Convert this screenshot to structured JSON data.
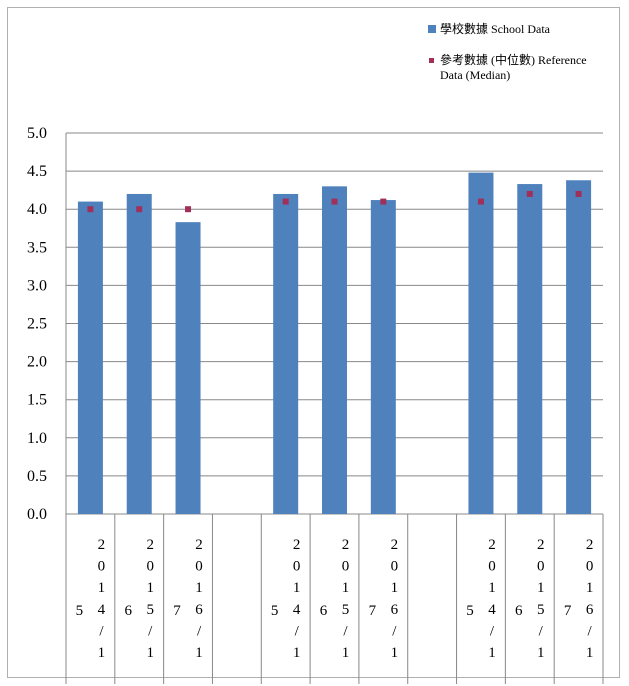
{
  "legend": {
    "school_label": "學校數據 School Data",
    "reference_label": "參考數據 (中位數) Reference Data (Median)"
  },
  "colors": {
    "bar": "#4f81bd",
    "point": "#a0305a",
    "grid": "#888888"
  },
  "chart_data": {
    "type": "bar",
    "ylim": [
      0,
      5
    ],
    "yticks": [
      "0.0",
      "0.5",
      "1.0",
      "1.5",
      "2.0",
      "2.5",
      "3.0",
      "3.5",
      "4.0",
      "4.5",
      "5.0"
    ],
    "groups": [
      {
        "items": [
          {
            "num": "5",
            "year": "2014/1",
            "school": 4.1,
            "reference": 4.0
          },
          {
            "num": "6",
            "year": "2015/1",
            "school": 4.2,
            "reference": 4.0
          },
          {
            "num": "7",
            "year": "2016/1",
            "school": 3.83,
            "reference": 4.0
          }
        ]
      },
      {
        "items": [
          {
            "num": "5",
            "year": "2014/1",
            "school": 4.2,
            "reference": 4.1
          },
          {
            "num": "6",
            "year": "2015/1",
            "school": 4.3,
            "reference": 4.1
          },
          {
            "num": "7",
            "year": "2016/1",
            "school": 4.12,
            "reference": 4.1
          }
        ]
      },
      {
        "items": [
          {
            "num": "5",
            "year": "2014/1",
            "school": 4.48,
            "reference": 4.1
          },
          {
            "num": "6",
            "year": "2015/1",
            "school": 4.33,
            "reference": 4.2
          },
          {
            "num": "7",
            "year": "2016/1",
            "school": 4.38,
            "reference": 4.2
          }
        ]
      }
    ]
  }
}
